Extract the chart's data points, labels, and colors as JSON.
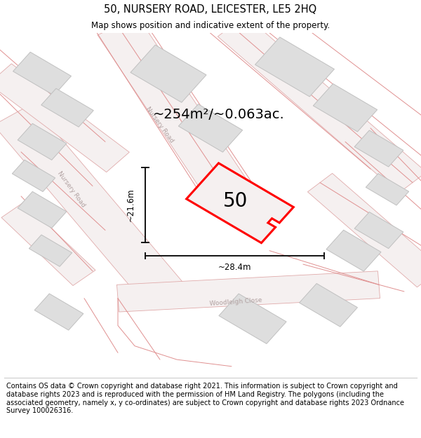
{
  "title": "50, NURSERY ROAD, LEICESTER, LE5 2HQ",
  "subtitle": "Map shows position and indicative extent of the property.",
  "footer": "Contains OS data © Crown copyright and database right 2021. This information is subject to Crown copyright and database rights 2023 and is reproduced with the permission of HM Land Registry. The polygons (including the associated geometry, namely x, y co-ordinates) are subject to Crown copyright and database rights 2023 Ordnance Survey 100026316.",
  "area_label": "~254m²/~0.063ac.",
  "width_label": "~28.4m",
  "height_label": "~21.6m",
  "property_number": "50",
  "map_bg": "#ede8e8",
  "road_fill": "#f5f0f0",
  "road_edge": "#e0aaaa",
  "building_fill": "#dedede",
  "building_stroke": "#c0c0c0",
  "property_stroke": "#ff0000",
  "property_fill": "#f5f0f0",
  "title_fontsize": 10.5,
  "subtitle_fontsize": 8.5,
  "footer_fontsize": 7.0,
  "road_label_color": "#b0a0a0",
  "dim_color": "#111111"
}
